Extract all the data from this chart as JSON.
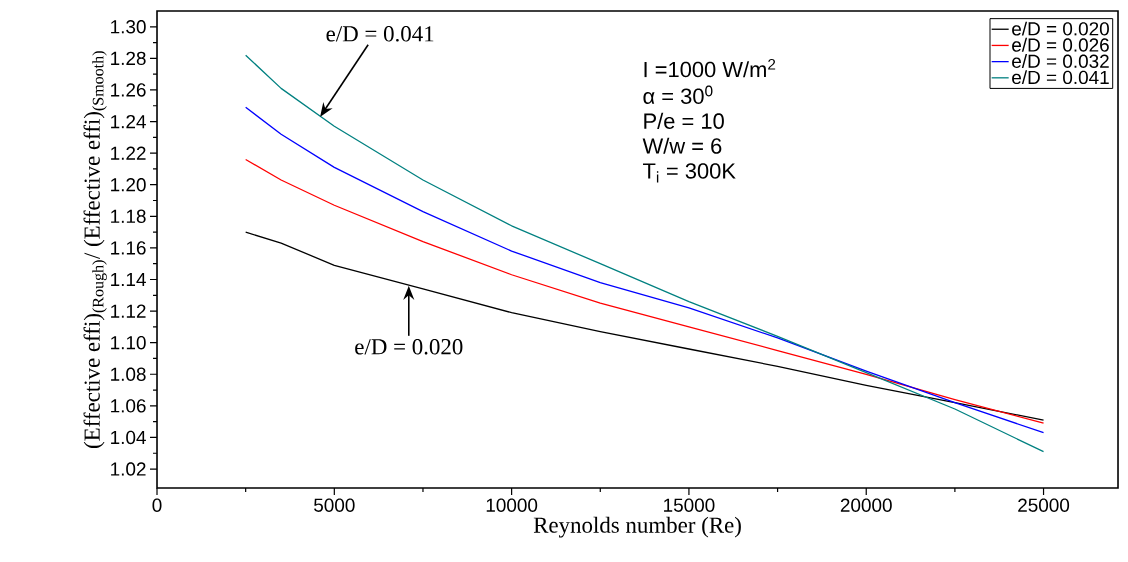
{
  "chart_data": {
    "type": "line",
    "xlabel": "Reynolds number (Re)",
    "ylabel": "(Effective effi)$_{(Rough)}$/ (Effective effi)$_{(Smooth)}$",
    "x": [
      2500,
      3500,
      5000,
      7500,
      10000,
      12500,
      15000,
      17500,
      20000,
      22500,
      25000
    ],
    "series": [
      {
        "name": "e/D = 0.020",
        "color": "#000000",
        "values": [
          1.17,
          1.163,
          1.149,
          1.134,
          1.119,
          1.107,
          1.096,
          1.085,
          1.073,
          1.062,
          1.051
        ]
      },
      {
        "name": "e/D = 0.026",
        "color": "#ff0000",
        "values": [
          1.216,
          1.203,
          1.187,
          1.164,
          1.143,
          1.125,
          1.11,
          1.095,
          1.08,
          1.064,
          1.049
        ]
      },
      {
        "name": "e/D = 0.032",
        "color": "#0000ff",
        "values": [
          1.249,
          1.232,
          1.211,
          1.183,
          1.158,
          1.138,
          1.122,
          1.103,
          1.082,
          1.062,
          1.043
        ]
      },
      {
        "name": "e/D = 0.041",
        "color": "#008080",
        "values": [
          1.282,
          1.261,
          1.237,
          1.203,
          1.174,
          1.15,
          1.126,
          1.104,
          1.081,
          1.058,
          1.031
        ]
      }
    ],
    "annotations": [
      {
        "text": "e/D = 0.041",
        "x": 4600,
        "y": 1.243
      },
      {
        "text": "e/D = 0.020",
        "x": 7100,
        "y": 1.136
      },
      "I =1000 W/m$^{2}$",
      "α = 30$^{0}$",
      "P/e = 10",
      "W/w = 6",
      "T$_{i}$ = 300K"
    ],
    "xlim": [
      0,
      27100
    ],
    "ylim": [
      1.008,
      1.31
    ],
    "xticks": [
      0,
      5000,
      10000,
      15000,
      20000,
      25000
    ],
    "yticks": [
      1.02,
      1.04,
      1.06,
      1.08,
      {
        "value": 1.1,
        "label": "1.10"
      },
      1.12,
      1.14,
      1.16,
      1.18,
      {
        "value": 1.2,
        "label": "1.20"
      },
      1.22,
      1.24,
      1.26,
      1.28,
      {
        "value": 1.3,
        "label": "1.30"
      }
    ],
    "legend": "top right",
    "grid": false,
    "marker": "none",
    "line_style": "solid"
  }
}
